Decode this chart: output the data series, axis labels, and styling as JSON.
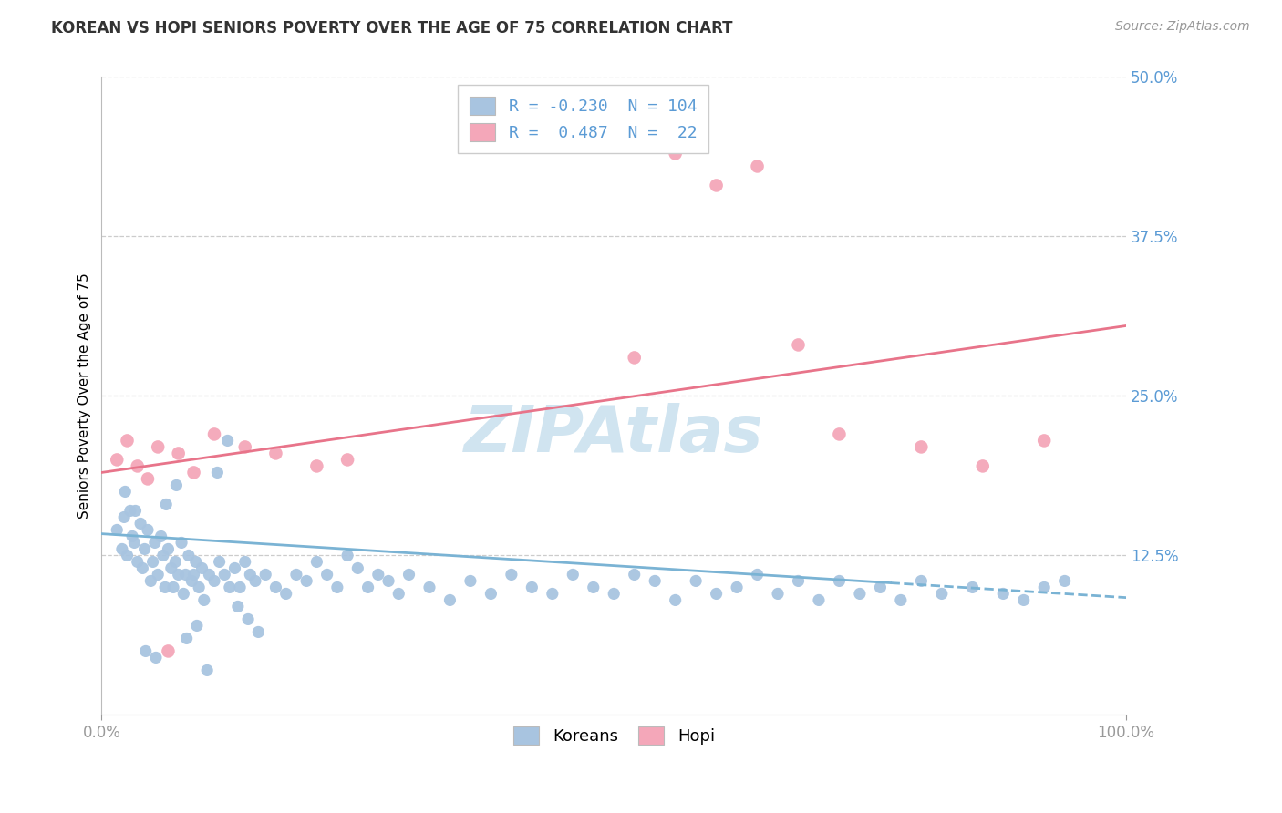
{
  "title": "KOREAN VS HOPI SENIORS POVERTY OVER THE AGE OF 75 CORRELATION CHART",
  "source": "Source: ZipAtlas.com",
  "ylabel": "Seniors Poverty Over the Age of 75",
  "xlim": [
    0,
    100
  ],
  "ylim": [
    0,
    50
  ],
  "yticks": [
    0,
    12.5,
    25.0,
    37.5,
    50.0
  ],
  "ytick_labels": [
    "",
    "12.5%",
    "25.0%",
    "37.5%",
    "50.0%"
  ],
  "xtick_labels": [
    "0.0%",
    "100.0%"
  ],
  "korean_color": "#a8c4e0",
  "hopi_color": "#f4a7b9",
  "korean_line_color": "#7ab3d4",
  "hopi_line_color": "#e8748a",
  "axis_label_color": "#5b9bd5",
  "watermark_color": "#d0e4f0",
  "background_color": "#ffffff",
  "grid_color": "#cccccc",
  "legend_korean_label": "R = -0.230  N = 104",
  "legend_hopi_label": "R =  0.487  N =  22",
  "legend_korean_box_color": "#a8c4e0",
  "legend_hopi_box_color": "#f4a7b9",
  "korean_trend_y_start": 14.2,
  "korean_trend_y_end": 9.2,
  "korean_dash_start": 77,
  "hopi_trend_y_start": 19.0,
  "hopi_trend_y_end": 30.5,
  "korean_dots_x": [
    1.5,
    2.0,
    2.2,
    2.5,
    2.8,
    3.0,
    3.2,
    3.5,
    3.8,
    4.0,
    4.2,
    4.5,
    4.8,
    5.0,
    5.2,
    5.5,
    5.8,
    6.0,
    6.2,
    6.5,
    6.8,
    7.0,
    7.2,
    7.5,
    7.8,
    8.0,
    8.2,
    8.5,
    8.8,
    9.0,
    9.2,
    9.5,
    9.8,
    10.0,
    10.5,
    11.0,
    11.5,
    12.0,
    12.5,
    13.0,
    13.5,
    14.0,
    14.5,
    15.0,
    16.0,
    17.0,
    18.0,
    19.0,
    20.0,
    21.0,
    22.0,
    23.0,
    24.0,
    25.0,
    26.0,
    27.0,
    28.0,
    29.0,
    30.0,
    32.0,
    34.0,
    36.0,
    38.0,
    40.0,
    42.0,
    44.0,
    46.0,
    48.0,
    50.0,
    52.0,
    54.0,
    56.0,
    58.0,
    60.0,
    62.0,
    64.0,
    66.0,
    68.0,
    70.0,
    72.0,
    74.0,
    76.0,
    78.0,
    80.0,
    82.0,
    85.0,
    88.0,
    90.0,
    92.0,
    94.0,
    2.3,
    3.3,
    4.3,
    5.3,
    6.3,
    7.3,
    8.3,
    9.3,
    10.3,
    11.3,
    12.3,
    13.3,
    14.3,
    15.3
  ],
  "korean_dots_y": [
    14.5,
    13.0,
    15.5,
    12.5,
    16.0,
    14.0,
    13.5,
    12.0,
    15.0,
    11.5,
    13.0,
    14.5,
    10.5,
    12.0,
    13.5,
    11.0,
    14.0,
    12.5,
    10.0,
    13.0,
    11.5,
    10.0,
    12.0,
    11.0,
    13.5,
    9.5,
    11.0,
    12.5,
    10.5,
    11.0,
    12.0,
    10.0,
    11.5,
    9.0,
    11.0,
    10.5,
    12.0,
    11.0,
    10.0,
    11.5,
    10.0,
    12.0,
    11.0,
    10.5,
    11.0,
    10.0,
    9.5,
    11.0,
    10.5,
    12.0,
    11.0,
    10.0,
    12.5,
    11.5,
    10.0,
    11.0,
    10.5,
    9.5,
    11.0,
    10.0,
    9.0,
    10.5,
    9.5,
    11.0,
    10.0,
    9.5,
    11.0,
    10.0,
    9.5,
    11.0,
    10.5,
    9.0,
    10.5,
    9.5,
    10.0,
    11.0,
    9.5,
    10.5,
    9.0,
    10.5,
    9.5,
    10.0,
    9.0,
    10.5,
    9.5,
    10.0,
    9.5,
    9.0,
    10.0,
    10.5,
    17.5,
    16.0,
    5.0,
    4.5,
    16.5,
    18.0,
    6.0,
    7.0,
    3.5,
    19.0,
    21.5,
    8.5,
    7.5,
    6.5
  ],
  "hopi_dots_x": [
    1.5,
    2.5,
    3.5,
    4.5,
    5.5,
    6.5,
    7.5,
    9.0,
    11.0,
    14.0,
    17.0,
    21.0,
    24.0,
    52.0,
    56.0,
    60.0,
    64.0,
    68.0,
    72.0,
    80.0,
    86.0,
    92.0
  ],
  "hopi_dots_y": [
    20.0,
    21.5,
    19.5,
    18.5,
    21.0,
    5.0,
    20.5,
    19.0,
    22.0,
    21.0,
    20.5,
    19.5,
    20.0,
    28.0,
    44.0,
    41.5,
    43.0,
    29.0,
    22.0,
    21.0,
    19.5,
    21.5
  ]
}
